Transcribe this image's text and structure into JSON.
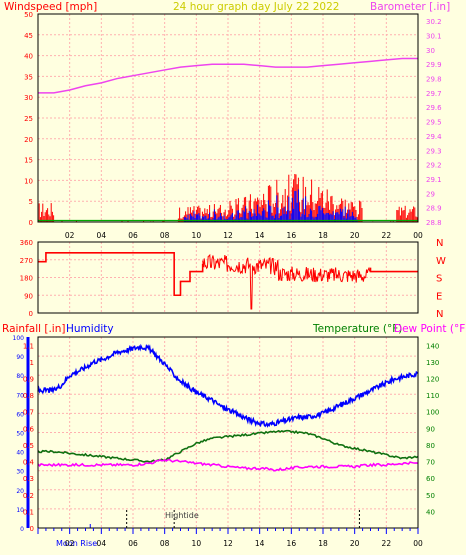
{
  "colors": {
    "background": "#ffffe0",
    "panel_border": "#000000",
    "grid": "#ffb0b0",
    "wind": "#ff0000",
    "gust": "#0000ff",
    "calm": "#00aa00",
    "barometer": "#ee44ee",
    "direction": "#ff0000",
    "humidity": "#0000ff",
    "temperature": "#107010",
    "dewpoint": "#ff00ff",
    "rainfall": "#ff0000",
    "title": "#cccc00",
    "left_axis_text": "#ff0000",
    "humidity_axis_text": "#0000ff",
    "temp_axis_text": "#008000",
    "dew_axis_text": "#ff00ff",
    "bottom_ticks": "#0000ff",
    "axis_tick_text": "#000000"
  },
  "header": {
    "title": "24 hour graph day   July 22 2022",
    "left_label": "Windspeed [mph]",
    "right_label": "Barometer [.in]"
  },
  "panel3_labels": {
    "rainfall": "Rainfall [.in]",
    "humidity": "Humidity",
    "temperature": "Temperature (°F)",
    "dewpoint": "Dew Point (°F)"
  },
  "direction_labels": [
    "N",
    "W",
    "S",
    "E",
    "N"
  ],
  "footer": {
    "moon": "Moon Rise",
    "tide": "Hightide"
  },
  "chart_data": [
    {
      "type": "line",
      "name": "wind-barometer",
      "x_domain": [
        0,
        24
      ],
      "x_ticks": [
        "02",
        "04",
        "06",
        "08",
        "10",
        "12",
        "14",
        "16",
        "18",
        "20",
        "22",
        "00"
      ],
      "y_left_ticks": [
        "50",
        "45",
        "40",
        "35",
        "30",
        "25",
        "20",
        "15",
        "10",
        "5",
        "0"
      ],
      "y_left_range": [
        0,
        50
      ],
      "y_right_ticks": [
        "30.2",
        "30.1",
        "30",
        "29.9",
        "29.8",
        "29.7",
        "29.6",
        "29.5",
        "29.4",
        "29.3",
        "29.2",
        "29.1",
        "29",
        "28.9",
        "28.8"
      ],
      "y_right_range": [
        28.8,
        30.25
      ],
      "grid": true,
      "barometer": {
        "x": [
          0,
          1,
          2,
          3,
          4,
          5,
          6,
          7,
          8,
          9,
          10,
          11,
          12,
          13,
          14,
          15,
          16,
          17,
          18,
          19,
          20,
          21,
          22,
          23,
          24
        ],
        "y": [
          29.7,
          29.7,
          29.72,
          29.75,
          29.77,
          29.8,
          29.82,
          29.84,
          29.86,
          29.88,
          29.89,
          29.9,
          29.9,
          29.9,
          29.89,
          29.88,
          29.88,
          29.88,
          29.89,
          29.9,
          29.91,
          29.92,
          29.93,
          29.94,
          29.94
        ]
      }
    },
    {
      "type": "line",
      "name": "wind-direction",
      "x_domain": [
        0,
        24
      ],
      "y_ticks": [
        "360",
        "270",
        "180",
        "90",
        "0"
      ],
      "y_range": [
        0,
        360
      ],
      "grid": true,
      "segments": [
        {
          "x": [
            0,
            0.5,
            0.5,
            8.6,
            8.6,
            9,
            9,
            9.6,
            9.6,
            10.4,
            10.4
          ],
          "y": [
            260,
            260,
            305,
            305,
            90,
            90,
            160,
            160,
            210,
            210,
            250
          ]
        },
        {
          "x": [
            21,
            21,
            24
          ],
          "y": [
            230,
            210,
            210
          ]
        }
      ]
    },
    {
      "type": "line",
      "name": "humidity-temperature",
      "x_domain": [
        0,
        24
      ],
      "y_left_ticks": [
        "100",
        "90",
        "80",
        "70",
        "60",
        "50",
        "40",
        "30",
        "20",
        "10",
        "0"
      ],
      "y_left_range": [
        0,
        100
      ],
      "rain_ticks": [
        "1.1",
        "1",
        "0.9",
        "0.8",
        "0.7",
        "0.6",
        "0.5",
        "0.4",
        "0.3",
        "0.2",
        "0.1",
        "0"
      ],
      "rain_range": [
        0,
        1.15
      ],
      "y_right_ticks": [
        "140",
        "130",
        "120",
        "110",
        "100",
        "90",
        "80",
        "70",
        "60",
        "50",
        "40"
      ],
      "y_right_range": [
        30,
        145
      ],
      "grid": true,
      "humidity": {
        "x": [
          0,
          0.5,
          1,
          1.5,
          2,
          2.5,
          3,
          3.5,
          4,
          4.5,
          5,
          5.5,
          6,
          6.5,
          7,
          7.5,
          8,
          8.5,
          9,
          9.5,
          10,
          10.5,
          11,
          11.5,
          12,
          12.5,
          13,
          13.5,
          14,
          14.5,
          15,
          15.5,
          16,
          16.5,
          17,
          17.5,
          18,
          18.5,
          19,
          19.5,
          20,
          20.5,
          21,
          21.5,
          22,
          22.5,
          23,
          23.5,
          24
        ],
        "y": [
          72,
          72,
          72,
          75,
          80,
          82,
          84,
          87,
          88,
          90,
          92,
          93,
          94,
          95,
          94,
          90,
          86,
          81,
          77,
          74,
          71,
          69,
          67,
          64,
          62,
          60,
          58,
          56,
          55,
          54,
          55,
          56,
          57,
          58,
          58,
          59,
          60,
          62,
          64,
          66,
          68,
          70,
          72,
          74,
          76,
          78,
          79,
          80,
          81
        ]
      },
      "temperature": {
        "x": [
          0,
          1,
          2,
          3,
          4,
          5,
          6,
          7,
          8,
          9,
          10,
          11,
          12,
          13,
          14,
          15,
          16,
          17,
          18,
          19,
          20,
          21,
          22,
          23,
          24
        ],
        "y": [
          76,
          76,
          75,
          74,
          73,
          72,
          71,
          70,
          71,
          76,
          81,
          84,
          85,
          86,
          87,
          88,
          88,
          87,
          84,
          80,
          78,
          76,
          74,
          72,
          73
        ]
      },
      "dewpoint": {
        "x": [
          0,
          1,
          2,
          3,
          4,
          5,
          6,
          7,
          8,
          9,
          10,
          11,
          12,
          13,
          14,
          15,
          16,
          17,
          18,
          19,
          20,
          21,
          22,
          23,
          24
        ],
        "y": [
          68,
          68,
          68,
          68,
          68,
          68,
          68,
          69,
          71,
          70,
          69,
          68,
          67,
          66,
          66,
          65,
          66,
          67,
          67,
          67,
          67,
          68,
          68,
          69,
          69
        ]
      },
      "rainfall": {
        "x": [
          0,
          24
        ],
        "y": [
          0,
          0
        ]
      }
    }
  ]
}
